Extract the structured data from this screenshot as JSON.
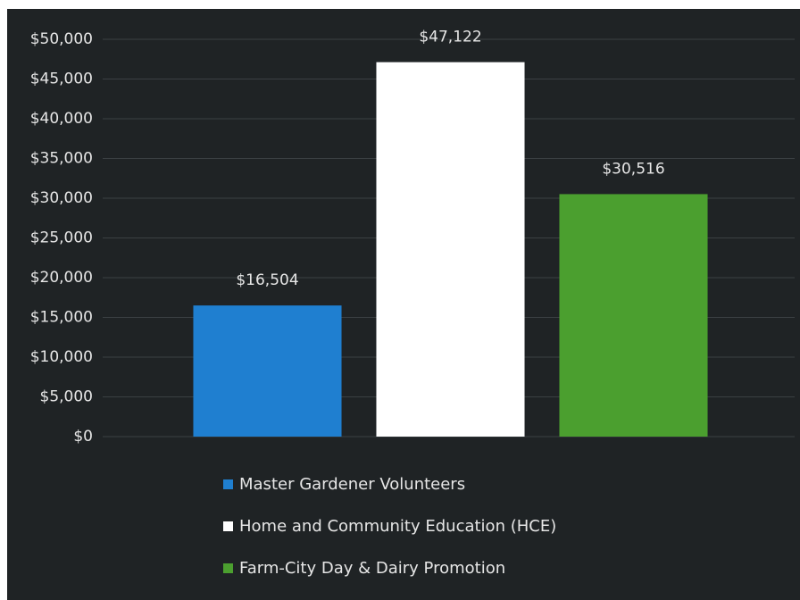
{
  "chart_data": {
    "type": "bar",
    "categories": [
      "Master Gardener Volunteers",
      "Home and Community Education (HCE)",
      "Farm-City Day & Dairy Promotion"
    ],
    "values": [
      16504,
      47122,
      30516
    ],
    "value_labels": [
      "$16,504",
      "$47,122",
      "$30,516"
    ],
    "colors": [
      "#1f7fd0",
      "#ffffff",
      "#4b9f2f"
    ],
    "ylim": [
      0,
      50000
    ],
    "yticks": [
      {
        "value": 0,
        "label": "$0"
      },
      {
        "value": 5000,
        "label": "$5,000"
      },
      {
        "value": 10000,
        "label": "$10,000"
      },
      {
        "value": 15000,
        "label": "$15,000"
      },
      {
        "value": 20000,
        "label": "$20,000"
      },
      {
        "value": 25000,
        "label": "$25,000"
      },
      {
        "value": 30000,
        "label": "$30,000"
      },
      {
        "value": 35000,
        "label": "$35,000"
      },
      {
        "value": 40000,
        "label": "$40,000"
      },
      {
        "value": 45000,
        "label": "$45,000"
      },
      {
        "value": 50000,
        "label": "$50,000"
      }
    ],
    "grid": true,
    "legend": "bottom"
  }
}
